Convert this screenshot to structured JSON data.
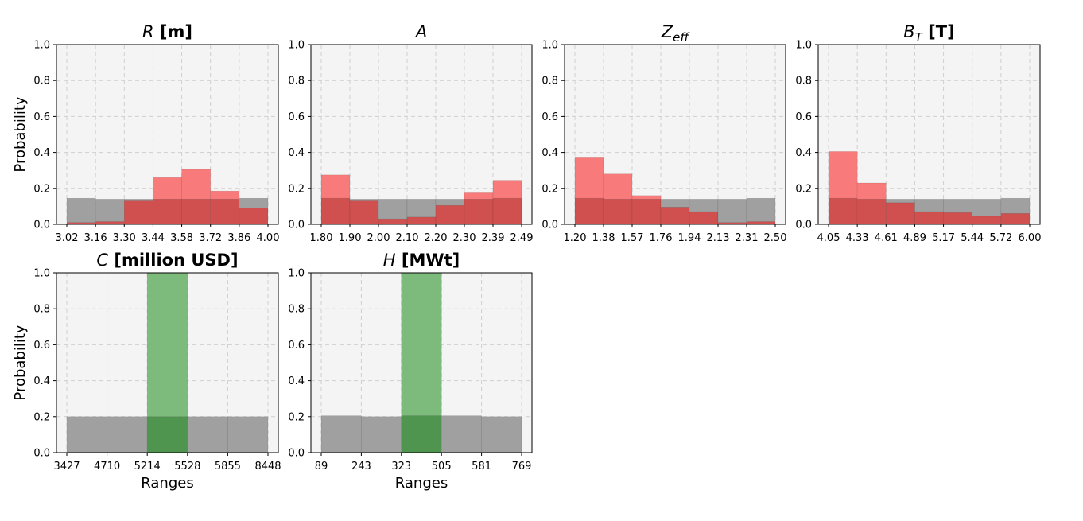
{
  "chart_data": [
    {
      "type": "bar",
      "title": {
        "var": "R",
        "sub": "",
        "unit": "[m]"
      },
      "ylabel": "Probability",
      "xlabel": "",
      "ylim": [
        0,
        1.0
      ],
      "yticks": [
        "0.0",
        "0.2",
        "0.4",
        "0.6",
        "0.8",
        "1.0"
      ],
      "xticks": [
        "3.02",
        "3.16",
        "3.30",
        "3.44",
        "3.58",
        "3.72",
        "3.86",
        "4.00"
      ],
      "grid": true,
      "series": [
        {
          "color": "#a0a0a0",
          "values": [
            0.145,
            0.14,
            0.14,
            0.14,
            0.14,
            0.14,
            0.145
          ]
        },
        {
          "color": "#f87a7a",
          "overlap_color": "#d05050",
          "values": [
            0.01,
            0.015,
            0.13,
            0.26,
            0.305,
            0.185,
            0.09
          ]
        }
      ]
    },
    {
      "type": "bar",
      "title": {
        "var": "A",
        "sub": "",
        "unit": ""
      },
      "ylabel": "",
      "xlabel": "",
      "ylim": [
        0,
        1.0
      ],
      "yticks": [
        "0.0",
        "0.2",
        "0.4",
        "0.6",
        "0.8",
        "1.0"
      ],
      "xticks": [
        "1.80",
        "1.90",
        "2.00",
        "2.10",
        "2.20",
        "2.30",
        "2.39",
        "2.49"
      ],
      "grid": true,
      "series": [
        {
          "color": "#a0a0a0",
          "values": [
            0.145,
            0.14,
            0.14,
            0.14,
            0.14,
            0.14,
            0.145
          ]
        },
        {
          "color": "#f87a7a",
          "overlap_color": "#d05050",
          "values": [
            0.275,
            0.13,
            0.03,
            0.04,
            0.105,
            0.175,
            0.245
          ]
        }
      ]
    },
    {
      "type": "bar",
      "title": {
        "var": "Z",
        "sub": "eff",
        "unit": ""
      },
      "ylabel": "",
      "xlabel": "",
      "ylim": [
        0,
        1.0
      ],
      "yticks": [
        "0.0",
        "0.2",
        "0.4",
        "0.6",
        "0.8",
        "1.0"
      ],
      "xticks": [
        "1.20",
        "1.38",
        "1.57",
        "1.76",
        "1.94",
        "2.13",
        "2.31",
        "2.50"
      ],
      "grid": true,
      "series": [
        {
          "color": "#a0a0a0",
          "values": [
            0.145,
            0.14,
            0.14,
            0.14,
            0.14,
            0.14,
            0.145
          ]
        },
        {
          "color": "#f87a7a",
          "overlap_color": "#d05050",
          "values": [
            0.37,
            0.28,
            0.16,
            0.095,
            0.07,
            0.01,
            0.015
          ]
        }
      ]
    },
    {
      "type": "bar",
      "title": {
        "var": "B",
        "sub": "T",
        "unit": "[T]"
      },
      "ylabel": "",
      "xlabel": "",
      "ylim": [
        0,
        1.0
      ],
      "yticks": [
        "0.0",
        "0.2",
        "0.4",
        "0.6",
        "0.8",
        "1.0"
      ],
      "xticks": [
        "4.05",
        "4.33",
        "4.61",
        "4.89",
        "5.17",
        "5.44",
        "5.72",
        "6.00"
      ],
      "grid": true,
      "series": [
        {
          "color": "#a0a0a0",
          "values": [
            0.145,
            0.14,
            0.14,
            0.14,
            0.14,
            0.14,
            0.145
          ]
        },
        {
          "color": "#f87a7a",
          "overlap_color": "#d05050",
          "values": [
            0.405,
            0.23,
            0.12,
            0.07,
            0.065,
            0.045,
            0.06
          ]
        }
      ]
    },
    {
      "type": "bar",
      "title": {
        "var": "C",
        "sub": "",
        "unit": "[million USD]"
      },
      "ylabel": "Probability",
      "xlabel": "Ranges",
      "ylim": [
        0,
        1.0
      ],
      "yticks": [
        "0.0",
        "0.2",
        "0.4",
        "0.6",
        "0.8",
        "1.0"
      ],
      "xticks": [
        "3427",
        "4710",
        "5214",
        "5528",
        "5855",
        "8448"
      ],
      "grid": true,
      "series": [
        {
          "color": "#a0a0a0",
          "values": [
            0.2,
            0.2,
            0.2,
            0.2,
            0.2
          ]
        },
        {
          "color": "#7cbb7c",
          "overlap_color": "#4f944f",
          "values": [
            0,
            0,
            1.0,
            0,
            0
          ]
        }
      ]
    },
    {
      "type": "bar",
      "title": {
        "var": "H",
        "sub": "",
        "unit": "[MWt]"
      },
      "ylabel": "",
      "xlabel": "Ranges",
      "ylim": [
        0,
        1.0
      ],
      "yticks": [
        "0.0",
        "0.2",
        "0.4",
        "0.6",
        "0.8",
        "1.0"
      ],
      "xticks": [
        "89",
        "243",
        "323",
        "505",
        "581",
        "769"
      ],
      "grid": true,
      "series": [
        {
          "color": "#a0a0a0",
          "values": [
            0.205,
            0.2,
            0.205,
            0.205,
            0.2
          ]
        },
        {
          "color": "#7cbb7c",
          "overlap_color": "#4f944f",
          "values": [
            0,
            0,
            1.0,
            0,
            0
          ]
        }
      ]
    }
  ]
}
